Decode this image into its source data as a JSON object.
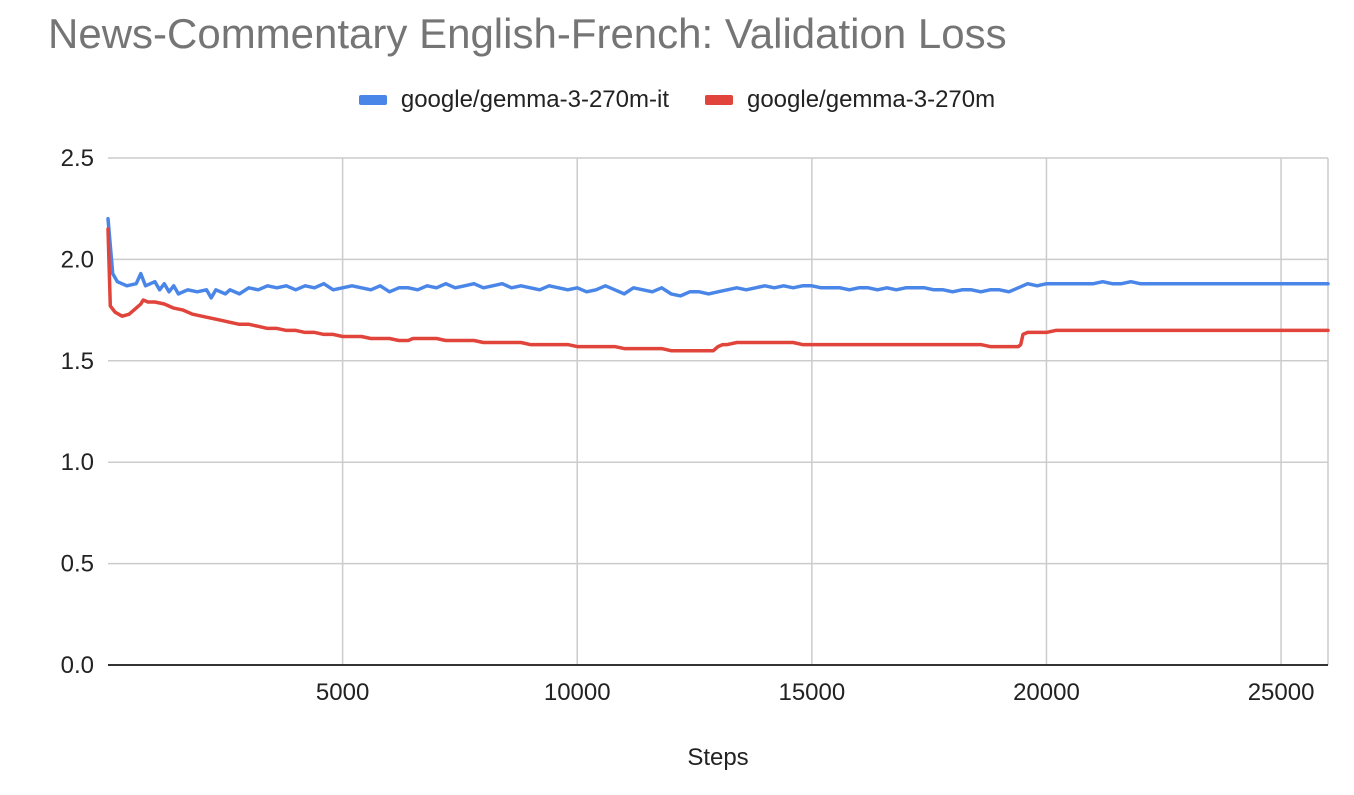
{
  "chart_data": {
    "type": "line",
    "title": "News-Commentary English-French: Validation Loss",
    "xlabel": "Steps",
    "ylabel": "",
    "xlim": [
      0,
      26000
    ],
    "ylim": [
      0,
      2.5
    ],
    "x_ticks": [
      5000,
      10000,
      15000,
      20000,
      25000
    ],
    "x_tick_labels": [
      "5000",
      "10000",
      "15000",
      "20000",
      "25000"
    ],
    "y_ticks": [
      0,
      0.5,
      1,
      1.5,
      2,
      2.5
    ],
    "y_tick_labels": [
      "0.0",
      "0.5",
      "1.0",
      "1.5",
      "2.0",
      "2.5"
    ],
    "grid": true,
    "legend_position": "top",
    "series": [
      {
        "name": "google/gemma-3-270m-it",
        "color": "#4a86e8",
        "points": [
          [
            0,
            2.2
          ],
          [
            100,
            1.93
          ],
          [
            200,
            1.89
          ],
          [
            400,
            1.87
          ],
          [
            600,
            1.88
          ],
          [
            700,
            1.93
          ],
          [
            800,
            1.87
          ],
          [
            1000,
            1.89
          ],
          [
            1100,
            1.85
          ],
          [
            1200,
            1.88
          ],
          [
            1300,
            1.84
          ],
          [
            1400,
            1.87
          ],
          [
            1500,
            1.83
          ],
          [
            1700,
            1.85
          ],
          [
            1900,
            1.84
          ],
          [
            2100,
            1.85
          ],
          [
            2200,
            1.81
          ],
          [
            2300,
            1.85
          ],
          [
            2500,
            1.83
          ],
          [
            2600,
            1.85
          ],
          [
            2800,
            1.83
          ],
          [
            3000,
            1.86
          ],
          [
            3200,
            1.85
          ],
          [
            3400,
            1.87
          ],
          [
            3600,
            1.86
          ],
          [
            3800,
            1.87
          ],
          [
            4000,
            1.85
          ],
          [
            4200,
            1.87
          ],
          [
            4400,
            1.86
          ],
          [
            4600,
            1.88
          ],
          [
            4800,
            1.85
          ],
          [
            5000,
            1.86
          ],
          [
            5200,
            1.87
          ],
          [
            5400,
            1.86
          ],
          [
            5600,
            1.85
          ],
          [
            5800,
            1.87
          ],
          [
            6000,
            1.84
          ],
          [
            6200,
            1.86
          ],
          [
            6400,
            1.86
          ],
          [
            6600,
            1.85
          ],
          [
            6800,
            1.87
          ],
          [
            7000,
            1.86
          ],
          [
            7200,
            1.88
          ],
          [
            7400,
            1.86
          ],
          [
            7600,
            1.87
          ],
          [
            7800,
            1.88
          ],
          [
            8000,
            1.86
          ],
          [
            8200,
            1.87
          ],
          [
            8400,
            1.88
          ],
          [
            8600,
            1.86
          ],
          [
            8800,
            1.87
          ],
          [
            9000,
            1.86
          ],
          [
            9200,
            1.85
          ],
          [
            9400,
            1.87
          ],
          [
            9600,
            1.86
          ],
          [
            9800,
            1.85
          ],
          [
            10000,
            1.86
          ],
          [
            10200,
            1.84
          ],
          [
            10400,
            1.85
          ],
          [
            10600,
            1.87
          ],
          [
            10800,
            1.85
          ],
          [
            11000,
            1.83
          ],
          [
            11200,
            1.86
          ],
          [
            11400,
            1.85
          ],
          [
            11600,
            1.84
          ],
          [
            11800,
            1.86
          ],
          [
            12000,
            1.83
          ],
          [
            12200,
            1.82
          ],
          [
            12400,
            1.84
          ],
          [
            12600,
            1.84
          ],
          [
            12800,
            1.83
          ],
          [
            13000,
            1.84
          ],
          [
            13200,
            1.85
          ],
          [
            13400,
            1.86
          ],
          [
            13600,
            1.85
          ],
          [
            13800,
            1.86
          ],
          [
            14000,
            1.87
          ],
          [
            14200,
            1.86
          ],
          [
            14400,
            1.87
          ],
          [
            14600,
            1.86
          ],
          [
            14800,
            1.87
          ],
          [
            15000,
            1.87
          ],
          [
            15200,
            1.86
          ],
          [
            15400,
            1.86
          ],
          [
            15600,
            1.86
          ],
          [
            15800,
            1.85
          ],
          [
            16000,
            1.86
          ],
          [
            16200,
            1.86
          ],
          [
            16400,
            1.85
          ],
          [
            16600,
            1.86
          ],
          [
            16800,
            1.85
          ],
          [
            17000,
            1.86
          ],
          [
            17200,
            1.86
          ],
          [
            17400,
            1.86
          ],
          [
            17600,
            1.85
          ],
          [
            17800,
            1.85
          ],
          [
            18000,
            1.84
          ],
          [
            18200,
            1.85
          ],
          [
            18400,
            1.85
          ],
          [
            18600,
            1.84
          ],
          [
            18800,
            1.85
          ],
          [
            19000,
            1.85
          ],
          [
            19200,
            1.84
          ],
          [
            19400,
            1.86
          ],
          [
            19600,
            1.88
          ],
          [
            19800,
            1.87
          ],
          [
            20000,
            1.88
          ],
          [
            20200,
            1.88
          ],
          [
            20400,
            1.88
          ],
          [
            20600,
            1.88
          ],
          [
            20800,
            1.88
          ],
          [
            21000,
            1.88
          ],
          [
            21200,
            1.89
          ],
          [
            21400,
            1.88
          ],
          [
            21600,
            1.88
          ],
          [
            21800,
            1.89
          ],
          [
            22000,
            1.88
          ],
          [
            22500,
            1.88
          ],
          [
            23000,
            1.88
          ],
          [
            23500,
            1.88
          ],
          [
            24000,
            1.88
          ],
          [
            24500,
            1.88
          ],
          [
            25000,
            1.88
          ],
          [
            25500,
            1.88
          ],
          [
            26000,
            1.88
          ]
        ]
      },
      {
        "name": "google/gemma-3-270m",
        "color": "#e0443a",
        "points": [
          [
            0,
            2.15
          ],
          [
            50,
            1.77
          ],
          [
            150,
            1.74
          ],
          [
            300,
            1.72
          ],
          [
            450,
            1.73
          ],
          [
            600,
            1.76
          ],
          [
            700,
            1.78
          ],
          [
            750,
            1.8
          ],
          [
            850,
            1.79
          ],
          [
            1000,
            1.79
          ],
          [
            1200,
            1.78
          ],
          [
            1400,
            1.76
          ],
          [
            1600,
            1.75
          ],
          [
            1800,
            1.73
          ],
          [
            2000,
            1.72
          ],
          [
            2200,
            1.71
          ],
          [
            2400,
            1.7
          ],
          [
            2600,
            1.69
          ],
          [
            2800,
            1.68
          ],
          [
            3000,
            1.68
          ],
          [
            3200,
            1.67
          ],
          [
            3400,
            1.66
          ],
          [
            3600,
            1.66
          ],
          [
            3800,
            1.65
          ],
          [
            4000,
            1.65
          ],
          [
            4200,
            1.64
          ],
          [
            4400,
            1.64
          ],
          [
            4600,
            1.63
          ],
          [
            4800,
            1.63
          ],
          [
            5000,
            1.62
          ],
          [
            5200,
            1.62
          ],
          [
            5400,
            1.62
          ],
          [
            5600,
            1.61
          ],
          [
            5800,
            1.61
          ],
          [
            6000,
            1.61
          ],
          [
            6200,
            1.6
          ],
          [
            6400,
            1.6
          ],
          [
            6500,
            1.61
          ],
          [
            6600,
            1.61
          ],
          [
            6800,
            1.61
          ],
          [
            7000,
            1.61
          ],
          [
            7200,
            1.6
          ],
          [
            7400,
            1.6
          ],
          [
            7600,
            1.6
          ],
          [
            7800,
            1.6
          ],
          [
            8000,
            1.59
          ],
          [
            8200,
            1.59
          ],
          [
            8400,
            1.59
          ],
          [
            8600,
            1.59
          ],
          [
            8800,
            1.59
          ],
          [
            9000,
            1.58
          ],
          [
            9200,
            1.58
          ],
          [
            9400,
            1.58
          ],
          [
            9600,
            1.58
          ],
          [
            9800,
            1.58
          ],
          [
            10000,
            1.57
          ],
          [
            10200,
            1.57
          ],
          [
            10400,
            1.57
          ],
          [
            10600,
            1.57
          ],
          [
            10800,
            1.57
          ],
          [
            11000,
            1.56
          ],
          [
            11200,
            1.56
          ],
          [
            11400,
            1.56
          ],
          [
            11600,
            1.56
          ],
          [
            11800,
            1.56
          ],
          [
            12000,
            1.55
          ],
          [
            12200,
            1.55
          ],
          [
            12400,
            1.55
          ],
          [
            12600,
            1.55
          ],
          [
            12800,
            1.55
          ],
          [
            12900,
            1.55
          ],
          [
            13000,
            1.57
          ],
          [
            13100,
            1.58
          ],
          [
            13200,
            1.58
          ],
          [
            13400,
            1.59
          ],
          [
            13600,
            1.59
          ],
          [
            13800,
            1.59
          ],
          [
            14000,
            1.59
          ],
          [
            14200,
            1.59
          ],
          [
            14400,
            1.59
          ],
          [
            14600,
            1.59
          ],
          [
            14800,
            1.58
          ],
          [
            15000,
            1.58
          ],
          [
            15200,
            1.58
          ],
          [
            15400,
            1.58
          ],
          [
            15600,
            1.58
          ],
          [
            15800,
            1.58
          ],
          [
            16000,
            1.58
          ],
          [
            16200,
            1.58
          ],
          [
            16400,
            1.58
          ],
          [
            16600,
            1.58
          ],
          [
            16800,
            1.58
          ],
          [
            17000,
            1.58
          ],
          [
            17200,
            1.58
          ],
          [
            17400,
            1.58
          ],
          [
            17600,
            1.58
          ],
          [
            17800,
            1.58
          ],
          [
            18000,
            1.58
          ],
          [
            18200,
            1.58
          ],
          [
            18400,
            1.58
          ],
          [
            18600,
            1.58
          ],
          [
            18800,
            1.57
          ],
          [
            19000,
            1.57
          ],
          [
            19200,
            1.57
          ],
          [
            19400,
            1.57
          ],
          [
            19450,
            1.58
          ],
          [
            19500,
            1.63
          ],
          [
            19600,
            1.64
          ],
          [
            19800,
            1.64
          ],
          [
            20000,
            1.64
          ],
          [
            20200,
            1.65
          ],
          [
            20400,
            1.65
          ],
          [
            20600,
            1.65
          ],
          [
            20800,
            1.65
          ],
          [
            21000,
            1.65
          ],
          [
            21500,
            1.65
          ],
          [
            22000,
            1.65
          ],
          [
            22500,
            1.65
          ],
          [
            23000,
            1.65
          ],
          [
            23500,
            1.65
          ],
          [
            24000,
            1.65
          ],
          [
            24500,
            1.65
          ],
          [
            25000,
            1.65
          ],
          [
            25500,
            1.65
          ],
          [
            26000,
            1.65
          ]
        ]
      }
    ]
  }
}
